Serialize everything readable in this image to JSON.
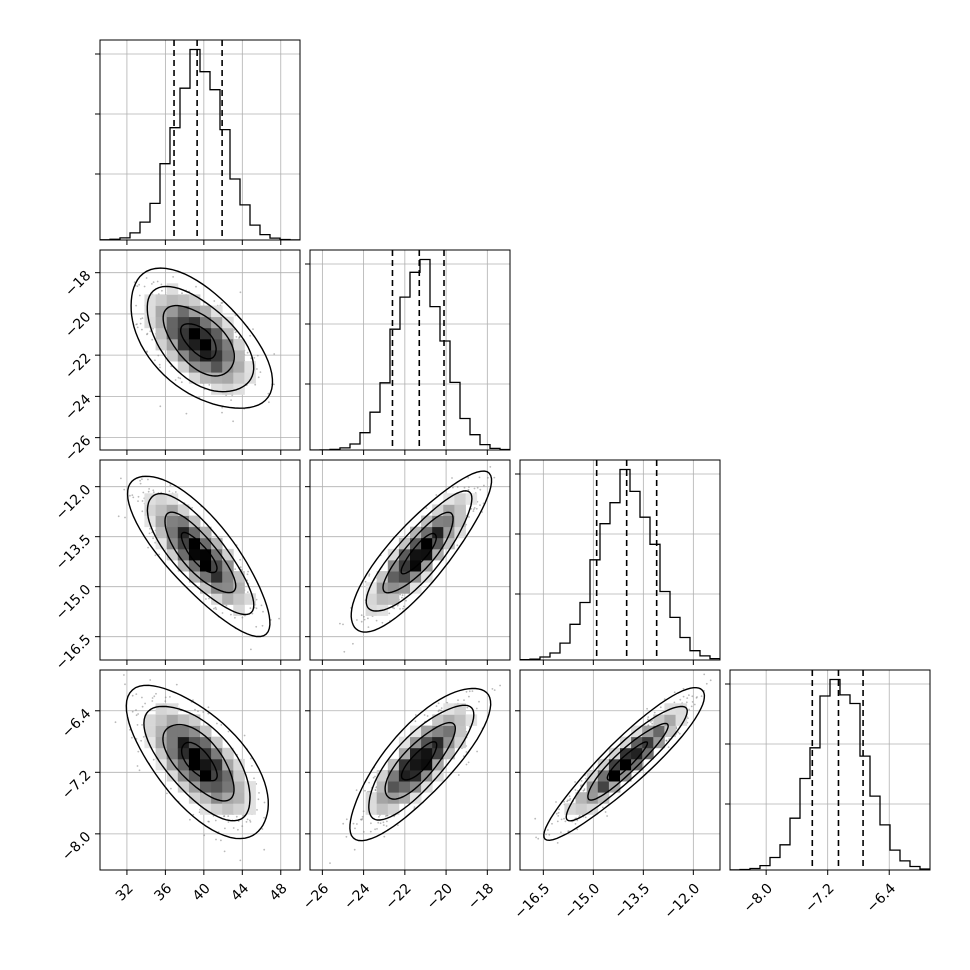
{
  "chart_data": {
    "type": "corner",
    "colors": {
      "line": "#000000",
      "grid": "#b0b0b0",
      "points": "#7f7f7f",
      "density_dark": "#000000",
      "density_light": "#ffffff"
    },
    "grid": true,
    "parameters": [
      {
        "mean": 39.5,
        "sd": 2.6,
        "range": [
          29.2,
          50.0
        ],
        "ticks": [
          32,
          36,
          40,
          44,
          48
        ],
        "tick_labels": [
          "32",
          "36",
          "40",
          "44",
          "48"
        ],
        "quantiles": [
          36.9,
          39.3,
          41.9
        ]
      },
      {
        "mean": -21.3,
        "sd": 1.2,
        "range": [
          -26.6,
          -16.9
        ],
        "ticks": [
          -26,
          -24,
          -22,
          -20,
          -18
        ],
        "tick_labels": [
          "−26",
          "−24",
          "−22",
          "−20",
          "−18"
        ],
        "quantiles": [
          -22.6,
          -21.3,
          -20.1
        ]
      },
      {
        "mean": -14.0,
        "sd": 0.85,
        "range": [
          -17.2,
          -11.2
        ],
        "ticks": [
          -16.5,
          -15.0,
          -13.5,
          -12.0
        ],
        "tick_labels": [
          "−16.5",
          "−15.0",
          "−13.5",
          "−12.0"
        ],
        "quantiles": [
          -14.9,
          -14.0,
          -13.1
        ]
      },
      {
        "mean": -7.06,
        "sd": 0.35,
        "range": [
          -8.47,
          -5.87
        ],
        "ticks": [
          -8.0,
          -7.2,
          -6.4
        ],
        "tick_labels": [
          "−8.0",
          "−7.2",
          "−6.4"
        ],
        "quantiles": [
          -7.4,
          -7.06,
          -6.74
        ]
      }
    ],
    "correlations": [
      [
        1.0,
        -0.55,
        -0.8,
        -0.65
      ],
      [
        -0.55,
        1.0,
        0.85,
        0.8
      ],
      [
        -0.8,
        0.85,
        1.0,
        0.92
      ],
      [
        -0.65,
        0.8,
        0.92,
        1.0
      ]
    ],
    "histogram_bins": 20,
    "contour_levels": [
      "0.5-sigma",
      "1-sigma",
      "1.5-sigma",
      "2-sigma"
    ]
  }
}
